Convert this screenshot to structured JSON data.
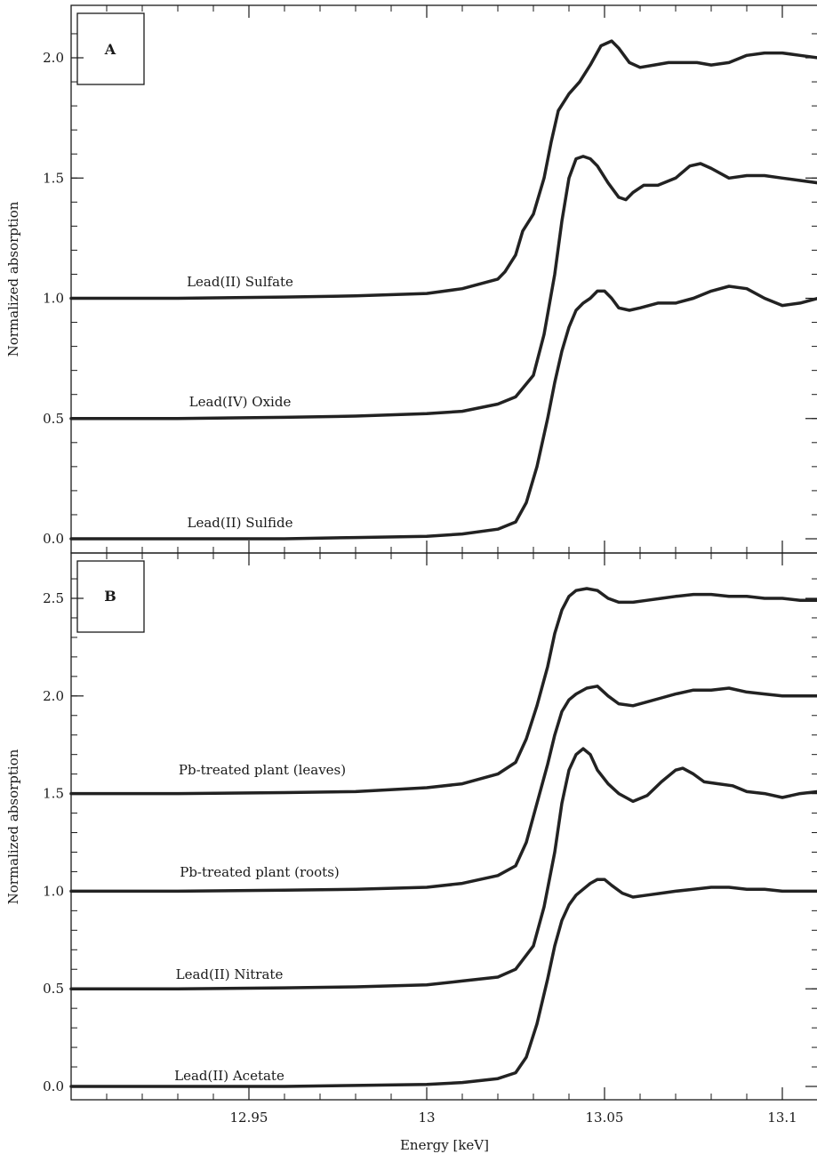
{
  "chart_data": [
    {
      "type": "line",
      "panel_label": "A",
      "xlabel": "",
      "ylabel": "Normalized absorption",
      "xlim": [
        12.9,
        13.11
      ],
      "ylim": [
        -0.05,
        2.2
      ],
      "yticks": [
        "0.0",
        "0.5",
        "1.0",
        "1.5",
        "2.0"
      ],
      "ytick_values": [
        0.0,
        0.5,
        1.0,
        1.5,
        2.0
      ],
      "grid": false,
      "series": [
        {
          "name": "Lead(II) Sulfate",
          "x": [
            12.9,
            12.93,
            12.96,
            12.98,
            13.0,
            13.01,
            13.02,
            13.022,
            13.025,
            13.027,
            13.03,
            13.033,
            13.035,
            13.037,
            13.04,
            13.043,
            13.046,
            13.049,
            13.052,
            13.054,
            13.057,
            13.06,
            13.064,
            13.068,
            13.072,
            13.076,
            13.08,
            13.085,
            13.09,
            13.095,
            13.1,
            13.105,
            13.11
          ],
          "y": [
            1.0,
            1.0,
            1.005,
            1.01,
            1.02,
            1.04,
            1.08,
            1.11,
            1.18,
            1.28,
            1.35,
            1.5,
            1.65,
            1.78,
            1.85,
            1.9,
            1.97,
            2.05,
            2.07,
            2.04,
            1.98,
            1.96,
            1.97,
            1.98,
            1.98,
            1.98,
            1.97,
            1.98,
            2.01,
            2.02,
            2.02,
            2.01,
            2.0
          ]
        },
        {
          "name": "Lead(IV) Oxide",
          "x": [
            12.9,
            12.93,
            12.96,
            12.98,
            13.0,
            13.01,
            13.02,
            13.025,
            13.03,
            13.033,
            13.036,
            13.038,
            13.04,
            13.042,
            13.044,
            13.046,
            13.048,
            13.051,
            13.054,
            13.056,
            13.058,
            13.061,
            13.065,
            13.07,
            13.074,
            13.077,
            13.08,
            13.085,
            13.09,
            13.095,
            13.1,
            13.105,
            13.11
          ],
          "y": [
            0.5,
            0.5,
            0.505,
            0.51,
            0.52,
            0.53,
            0.56,
            0.59,
            0.68,
            0.85,
            1.1,
            1.32,
            1.5,
            1.58,
            1.59,
            1.58,
            1.55,
            1.48,
            1.42,
            1.41,
            1.44,
            1.47,
            1.47,
            1.5,
            1.55,
            1.56,
            1.54,
            1.5,
            1.51,
            1.51,
            1.5,
            1.49,
            1.48
          ]
        },
        {
          "name": "Lead(II) Sulfide",
          "x": [
            12.9,
            12.93,
            12.96,
            12.98,
            13.0,
            13.01,
            13.02,
            13.025,
            13.028,
            13.031,
            13.034,
            13.036,
            13.038,
            13.04,
            13.042,
            13.044,
            13.046,
            13.048,
            13.05,
            13.052,
            13.054,
            13.057,
            13.06,
            13.065,
            13.07,
            13.075,
            13.08,
            13.085,
            13.09,
            13.095,
            13.1,
            13.105,
            13.11
          ],
          "y": [
            0.0,
            0.0,
            0.0,
            0.005,
            0.01,
            0.02,
            0.04,
            0.07,
            0.15,
            0.3,
            0.5,
            0.65,
            0.78,
            0.88,
            0.95,
            0.98,
            1.0,
            1.03,
            1.03,
            1.0,
            0.96,
            0.95,
            0.96,
            0.98,
            0.98,
            1.0,
            1.03,
            1.05,
            1.04,
            1.0,
            0.97,
            0.98,
            1.0
          ]
        }
      ]
    },
    {
      "type": "line",
      "panel_label": "B",
      "xlabel": "Energy [keV]",
      "ylabel": "Normalized absorption",
      "xlim": [
        12.9,
        13.11
      ],
      "ylim": [
        -0.05,
        2.75
      ],
      "xticks": [
        "12.95",
        "13",
        "13.05",
        "13.1"
      ],
      "xtick_values": [
        12.95,
        13.0,
        13.05,
        13.1
      ],
      "yticks": [
        "0.0",
        "0.5",
        "1.0",
        "1.5",
        "2.0",
        "2.5"
      ],
      "ytick_values": [
        0.0,
        0.5,
        1.0,
        1.5,
        2.0,
        2.5
      ],
      "grid": false,
      "series": [
        {
          "name": "Pb-treated plant (leaves)",
          "x": [
            12.9,
            12.93,
            12.96,
            12.98,
            13.0,
            13.01,
            13.02,
            13.025,
            13.028,
            13.031,
            13.034,
            13.036,
            13.038,
            13.04,
            13.042,
            13.045,
            13.048,
            13.051,
            13.054,
            13.058,
            13.062,
            13.066,
            13.07,
            13.075,
            13.08,
            13.085,
            13.09,
            13.095,
            13.1,
            13.105,
            13.11
          ],
          "y": [
            1.5,
            1.5,
            1.505,
            1.51,
            1.53,
            1.55,
            1.6,
            1.66,
            1.78,
            1.95,
            2.15,
            2.32,
            2.44,
            2.51,
            2.54,
            2.55,
            2.54,
            2.5,
            2.48,
            2.48,
            2.49,
            2.5,
            2.51,
            2.52,
            2.52,
            2.51,
            2.51,
            2.5,
            2.5,
            2.49,
            2.49
          ]
        },
        {
          "name": "Pb-treated plant (roots)",
          "x": [
            12.9,
            12.93,
            12.96,
            12.98,
            13.0,
            13.01,
            13.02,
            13.025,
            13.028,
            13.031,
            13.034,
            13.036,
            13.038,
            13.04,
            13.042,
            13.045,
            13.048,
            13.051,
            13.054,
            13.058,
            13.062,
            13.066,
            13.07,
            13.075,
            13.08,
            13.085,
            13.09,
            13.095,
            13.1,
            13.105,
            13.11
          ],
          "y": [
            1.0,
            1.0,
            1.005,
            1.01,
            1.02,
            1.04,
            1.08,
            1.13,
            1.25,
            1.45,
            1.65,
            1.8,
            1.92,
            1.98,
            2.01,
            2.04,
            2.05,
            2.0,
            1.96,
            1.95,
            1.97,
            1.99,
            2.01,
            2.03,
            2.03,
            2.04,
            2.02,
            2.01,
            2.0,
            2.0,
            2.0
          ]
        },
        {
          "name": "Lead(II) Nitrate",
          "x": [
            12.9,
            12.93,
            12.96,
            12.98,
            13.0,
            13.01,
            13.02,
            13.025,
            13.03,
            13.033,
            13.036,
            13.038,
            13.04,
            13.042,
            13.044,
            13.046,
            13.048,
            13.051,
            13.054,
            13.058,
            13.062,
            13.066,
            13.07,
            13.072,
            13.075,
            13.078,
            13.082,
            13.086,
            13.09,
            13.095,
            13.1,
            13.105,
            13.11
          ],
          "y": [
            0.5,
            0.5,
            0.505,
            0.51,
            0.52,
            0.54,
            0.56,
            0.6,
            0.72,
            0.92,
            1.2,
            1.45,
            1.62,
            1.7,
            1.73,
            1.7,
            1.62,
            1.55,
            1.5,
            1.46,
            1.49,
            1.56,
            1.62,
            1.63,
            1.6,
            1.56,
            1.55,
            1.54,
            1.51,
            1.5,
            1.48,
            1.5,
            1.51
          ]
        },
        {
          "name": "Lead(II) Acetate",
          "x": [
            12.9,
            12.93,
            12.96,
            12.98,
            13.0,
            13.01,
            13.02,
            13.025,
            13.028,
            13.031,
            13.034,
            13.036,
            13.038,
            13.04,
            13.042,
            13.044,
            13.046,
            13.048,
            13.05,
            13.052,
            13.055,
            13.058,
            13.062,
            13.066,
            13.07,
            13.075,
            13.08,
            13.085,
            13.09,
            13.095,
            13.1,
            13.105,
            13.11
          ],
          "y": [
            0.0,
            0.0,
            0.0,
            0.005,
            0.01,
            0.02,
            0.04,
            0.07,
            0.15,
            0.32,
            0.55,
            0.72,
            0.85,
            0.93,
            0.98,
            1.01,
            1.04,
            1.06,
            1.06,
            1.03,
            0.99,
            0.97,
            0.98,
            0.99,
            1.0,
            1.01,
            1.02,
            1.02,
            1.01,
            1.01,
            1.0,
            1.0,
            1.0
          ]
        }
      ]
    }
  ]
}
